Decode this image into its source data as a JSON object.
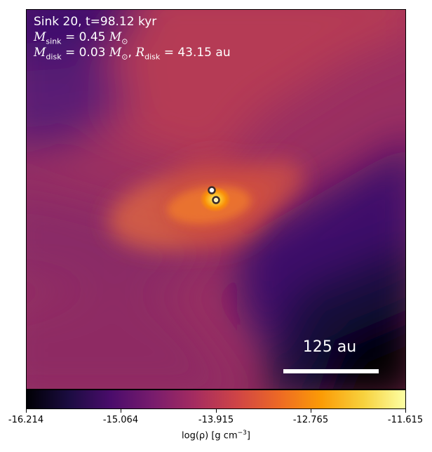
{
  "annotation": {
    "sink_label": "Sink 20, t=98.12 kyr",
    "m_sink_symbol": "M",
    "m_sink_sub": "sink",
    "m_sink_value": "= 0.45",
    "m_disk_symbol": "M",
    "m_disk_sub": "disk",
    "m_disk_value": "= 0.03",
    "r_disk_symbol": "R",
    "r_disk_sub": "disk",
    "r_disk_value": "= 43.15 au",
    "solar_symbol": "M",
    "solar_sub": "⊙"
  },
  "scalebar": {
    "label": "125 au"
  },
  "colorbar": {
    "label_prefix": "log(ρ) [g cm",
    "label_exp": "−3",
    "label_suffix": "]",
    "tick_labels": [
      "-16.214",
      "-15.064",
      "-13.915",
      "-12.765",
      "-11.615"
    ],
    "colormap": "inferno",
    "range": [
      -16.214,
      -11.615
    ]
  },
  "sinks": {
    "count": 2,
    "marker_color": "#3a2a2a"
  }
}
